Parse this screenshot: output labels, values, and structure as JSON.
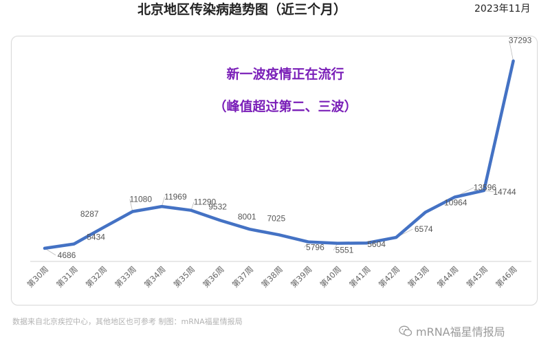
{
  "header": {
    "title": "北京地区传染病趋势图（近三个月）",
    "date": "2023年11月"
  },
  "annotation": {
    "line1": "新一波疫情正在流行",
    "line2": "（峰值超过第二、三波）"
  },
  "footer": {
    "source": "数据来自北京疾控中心，其他地区也可参考  制图：mRNA福星情报局",
    "brand": "mRNA福星情报局",
    "brand_icon": "wechat-icon"
  },
  "colors": {
    "line": "#4472c4",
    "annotation": "#7a1fb8",
    "label": "#555555"
  },
  "chart_data": {
    "type": "line",
    "title": "北京地区传染病趋势图（近三个月）",
    "xlabel": "",
    "ylabel": "",
    "ylim": [
      0,
      40000
    ],
    "grid": false,
    "legend": "none",
    "categories": [
      "第30周",
      "第31周",
      "第32周",
      "第33周",
      "第34周",
      "第35周",
      "第36周",
      "第37周",
      "第38周",
      "第39周",
      "第40周",
      "第41周",
      "第42周",
      "第43周",
      "第44周",
      "第45周",
      "第46周"
    ],
    "series": [
      {
        "values": [
          4686,
          5434,
          8287,
          11080,
          11969,
          11290,
          9532,
          8001,
          7025,
          5796,
          5551,
          5604,
          6574,
          10964,
          13596,
          14744,
          37293
        ]
      }
    ]
  }
}
